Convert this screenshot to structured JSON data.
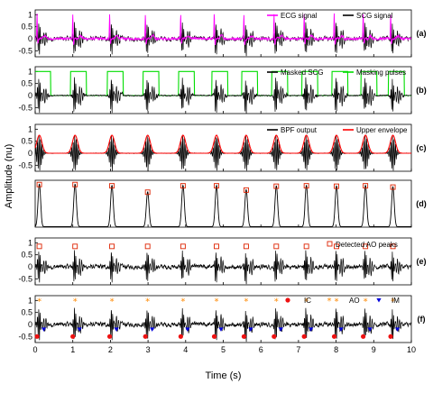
{
  "chart_data": {
    "type": "line",
    "xlabel": "Time (s)",
    "ylabel": "Amplitude (nu)",
    "xlim": [
      0,
      10
    ],
    "xticks": [
      "0",
      "1",
      "2",
      "3",
      "4",
      "5",
      "6",
      "7",
      "8",
      "9",
      "10"
    ],
    "beats": [
      0.05,
      1.0,
      1.98,
      2.93,
      3.87,
      4.76,
      5.55,
      6.35,
      7.15,
      7.95,
      8.72,
      9.45
    ],
    "panels": [
      {
        "label": "(a)",
        "ylim": [
          -0.75,
          1.2
        ],
        "yticks": [
          "1",
          "0.5",
          "0",
          "-0.5"
        ],
        "series": [
          {
            "name": "ECG signal",
            "color": "#ff00ff",
            "kind": "ecg"
          },
          {
            "name": "SCG signal",
            "color": "#000000",
            "kind": "scg"
          }
        ]
      },
      {
        "label": "(b)",
        "ylim": [
          -0.75,
          1.2
        ],
        "yticks": [
          "1",
          "0.5",
          "0",
          "-0.5"
        ],
        "series": [
          {
            "name": "Masked SCG",
            "color": "#000000",
            "kind": "masked"
          },
          {
            "name": "Masking pulses",
            "color": "#00dd00",
            "kind": "pulse"
          }
        ]
      },
      {
        "label": "(c)",
        "ylim": [
          -0.75,
          1.2
        ],
        "yticks": [
          "1",
          "0.5",
          "0",
          "-0.5"
        ],
        "series": [
          {
            "name": "BPF output",
            "color": "#000000",
            "kind": "bpf"
          },
          {
            "name": "Upper envelope",
            "color": "#ff0000",
            "kind": "env"
          }
        ]
      },
      {
        "label": "(d)",
        "ylim": [
          0,
          1.1
        ],
        "yticks": [],
        "series": [
          {
            "name": "",
            "color": "#000000",
            "kind": "peaks"
          }
        ],
        "peak_values": [
          1.0,
          1.0,
          0.97,
          0.82,
          0.97,
          0.97,
          0.87,
          0.96,
          0.97,
          0.96,
          0.97,
          0.94
        ]
      },
      {
        "label": "(e)",
        "ylim": [
          -0.75,
          1.2
        ],
        "yticks": [
          "1",
          "0.5",
          "0",
          "-0.5"
        ],
        "series": [
          {
            "name": "Detected AO peaks",
            "color": "#dd2200",
            "kind": "ao_peaks"
          }
        ]
      },
      {
        "label": "(f)",
        "ylim": [
          -0.75,
          1.2
        ],
        "yticks": [
          "1",
          "0.5",
          "0",
          "-0.5"
        ],
        "series": [
          {
            "name": "IC",
            "color": "#ee1111",
            "marker": "circle"
          },
          {
            "name": "AO",
            "color": "#ff8800",
            "marker": "star"
          },
          {
            "name": "IM",
            "color": "#0000dd",
            "marker": "triangle"
          }
        ]
      }
    ]
  }
}
